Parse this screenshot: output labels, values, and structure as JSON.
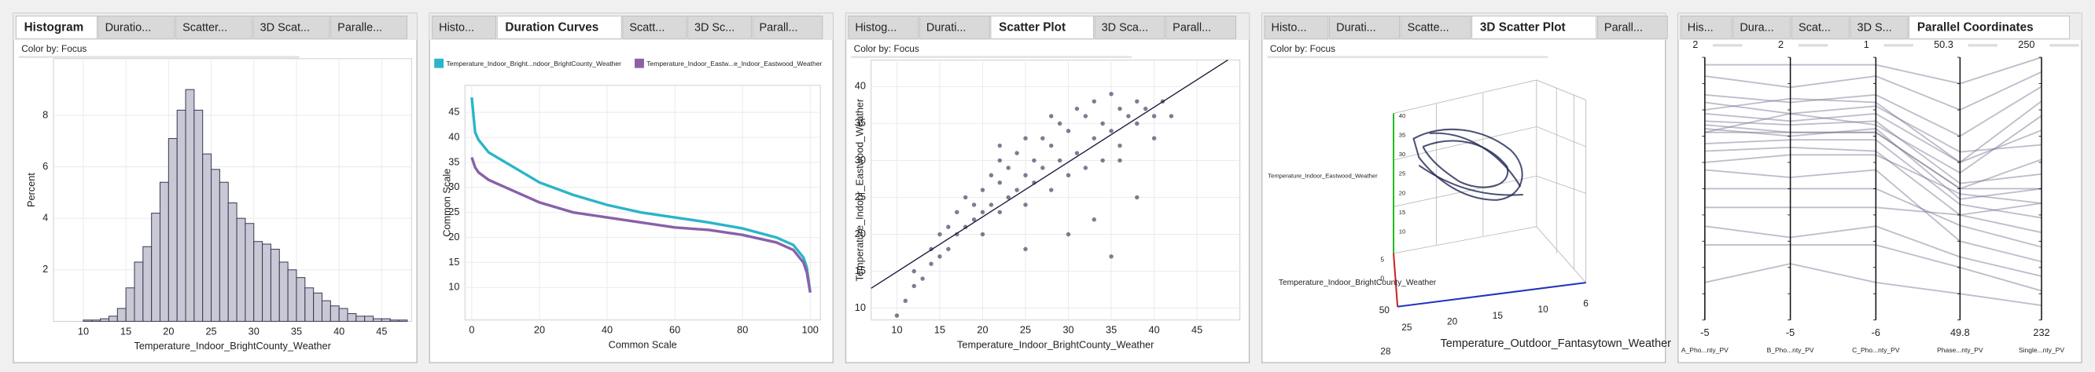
{
  "chart_data": [
    {
      "type": "histogram",
      "tabs": [
        "Histogram",
        "Duratio...",
        "Scatter...",
        "3D Scat...",
        "Paralle..."
      ],
      "active_tab": 0,
      "color_by": "Color by: Focus",
      "xlabel": "Temperature_Indoor_BrightCounty_Weather",
      "ylabel": "Percent",
      "bins": [
        10,
        11,
        12,
        13,
        14,
        15,
        16,
        17,
        18,
        19,
        20,
        21,
        22,
        23,
        24,
        25,
        26,
        27,
        28,
        29,
        30,
        31,
        32,
        33,
        34,
        35,
        36,
        37,
        38,
        39,
        40,
        41,
        42,
        43,
        44,
        45,
        46,
        47,
        48
      ],
      "values": [
        0.05,
        0.05,
        0.1,
        0.2,
        0.5,
        1.3,
        2.3,
        2.9,
        4.2,
        5.4,
        7.1,
        8.2,
        9.0,
        8.2,
        6.5,
        5.9,
        5.4,
        4.6,
        4.0,
        3.8,
        3.1,
        3.0,
        2.8,
        2.3,
        2.0,
        1.7,
        1.3,
        1.1,
        0.8,
        0.6,
        0.5,
        0.3,
        0.2,
        0.2,
        0.1,
        0.1,
        0.05,
        0.05
      ],
      "color": "#c9c9d6",
      "xlim": [
        6.5,
        48.5
      ],
      "ylim": [
        0,
        10.2
      ],
      "xticks": [
        10,
        15,
        20,
        25,
        30,
        35,
        40,
        45
      ],
      "yticks": [
        2,
        4,
        6,
        8
      ],
      "grid": true
    },
    {
      "type": "line",
      "tabs": [
        "Histo...",
        "Duration Curves",
        "Scatt...",
        "3D Sc...",
        "Parall..."
      ],
      "active_tab": 1,
      "xlabel": "Common Scale",
      "ylabel": "Common Scale",
      "x": [
        0,
        1,
        2,
        5,
        10,
        20,
        30,
        40,
        50,
        60,
        70,
        80,
        90,
        95,
        98,
        99,
        100
      ],
      "series": [
        {
          "name": "Temperature_Indoor_Bright...ndoor_BrightCounty_Weather",
          "color": "#2bb5c8",
          "values": [
            48,
            41,
            39.5,
            37,
            35,
            31,
            28.5,
            26.5,
            25,
            24,
            23,
            21.8,
            20,
            18.5,
            16,
            14,
            9
          ]
        },
        {
          "name": "Temperature_Indoor_Eastw...e_Indoor_Eastwood_Weather",
          "color": "#8a60a8",
          "values": [
            36,
            34,
            33,
            31.5,
            30,
            27,
            25,
            24,
            23,
            22,
            21.5,
            20.5,
            19,
            17.5,
            15,
            13,
            9
          ]
        }
      ],
      "xlim": [
        -2,
        103
      ],
      "ylim": [
        3.5,
        50.4
      ],
      "xticks": [
        0,
        20,
        40,
        60,
        80,
        100
      ],
      "yticks": [
        10,
        15,
        20,
        25,
        30,
        35,
        40,
        45
      ],
      "grid": true
    },
    {
      "type": "scatter",
      "tabs": [
        "Histog...",
        "Durati...",
        "Scatter Plot",
        "3D Sca...",
        "Parall..."
      ],
      "active_tab": 2,
      "color_by": "Color by: Focus",
      "xlabel": "Temperature_Indoor_BrightCounty_Weather",
      "ylabel": "Temperature_Indoor_Eastwood_Weather",
      "x": [
        10,
        11,
        12,
        12,
        13,
        14,
        14,
        15,
        15,
        16,
        16,
        17,
        17,
        18,
        18,
        19,
        19,
        20,
        20,
        20,
        21,
        21,
        22,
        22,
        22,
        23,
        23,
        24,
        24,
        25,
        25,
        25,
        26,
        26,
        27,
        27,
        28,
        28,
        29,
        29,
        30,
        30,
        31,
        31,
        32,
        32,
        33,
        33,
        34,
        34,
        35,
        35,
        36,
        36,
        37,
        38,
        38,
        39,
        40,
        41,
        25,
        30,
        35,
        38,
        36,
        33,
        22,
        28,
        42,
        40
      ],
      "values": [
        9,
        11,
        13,
        15,
        14,
        16,
        18,
        17,
        20,
        18,
        21,
        20,
        23,
        21,
        25,
        22,
        24,
        23,
        26,
        20,
        24,
        28,
        23,
        27,
        30,
        25,
        29,
        26,
        31,
        24,
        28,
        33,
        27,
        30,
        29,
        33,
        26,
        32,
        30,
        35,
        28,
        34,
        31,
        37,
        29,
        36,
        33,
        38,
        30,
        35,
        34,
        39,
        32,
        37,
        36,
        35,
        38,
        37,
        36,
        38,
        18,
        20,
        17,
        25,
        30,
        22,
        32,
        36,
        36,
        33
      ],
      "color": "#50506e",
      "fit_line": {
        "x": [
          7,
          48.6
        ],
        "y": [
          12.7,
          43.6
        ]
      },
      "xlim": [
        7,
        50
      ],
      "ylim": [
        8.4,
        43.6
      ],
      "xticks": [
        10,
        15,
        20,
        25,
        30,
        35,
        40,
        45
      ],
      "yticks": [
        10,
        15,
        20,
        25,
        30,
        35,
        40
      ],
      "grid": true
    },
    {
      "type": "scatter3d",
      "tabs": [
        "Histo...",
        "Durati...",
        "Scatte...",
        "3D Scatter Plot",
        "Parall..."
      ],
      "active_tab": 3,
      "color_by": "Color by: Focus",
      "zlabel": "Temperature_Indoor_Eastwood_Weather",
      "xlabel": "Temperature_Indoor_BrightCounty_Weather",
      "ylabel": "Temperature_Outdoor_Fantasytown_Weather",
      "zticks": [
        40,
        35,
        30,
        25,
        20,
        15,
        10
      ],
      "yticks": [
        25,
        20,
        15,
        10,
        6
      ],
      "xticks": [
        5,
        0
      ],
      "corner_labels": [
        50,
        28
      ]
    },
    {
      "type": "parallel",
      "tabs": [
        "His...",
        "Dura...",
        "Scat...",
        "3D S...",
        "Parallel Coordinates"
      ],
      "active_tab": 4,
      "axes": [
        "A_Pho...nty_PV",
        "B_Pho...nty_PV",
        "C_Pho...nty_PV",
        "Phase...nty_PV",
        "Single...nty_PV"
      ],
      "top": [
        2,
        2,
        1,
        50.3,
        250
      ],
      "bottom": [
        -5,
        -5,
        -6,
        49.8,
        232
      ],
      "color": "#6e6e8e",
      "records": [
        [
          0,
          0,
          -1,
          50.05,
          241
        ],
        [
          0.5,
          0.3,
          -0.5,
          50.1,
          245
        ],
        [
          -0.5,
          -0.4,
          -1.5,
          50.0,
          238
        ],
        [
          1,
          0.8,
          0,
          50.15,
          248
        ],
        [
          -1,
          -1.2,
          -2,
          49.95,
          236
        ],
        [
          0.2,
          0,
          -1,
          50.05,
          243
        ],
        [
          -2,
          -2,
          -3,
          50.0,
          240
        ],
        [
          1.5,
          1.2,
          0.5,
          50.2,
          249
        ],
        [
          -3,
          -3,
          -4,
          49.9,
          234
        ],
        [
          0,
          0.5,
          -0.8,
          50.08,
          246
        ],
        [
          -0.3,
          -0.2,
          -1.2,
          50.02,
          239
        ],
        [
          0.8,
          0.5,
          -0.3,
          50.12,
          244
        ],
        [
          -1.5,
          -1.5,
          -2.5,
          49.98,
          237
        ],
        [
          0.3,
          0.2,
          -0.7,
          50.06,
          242
        ],
        [
          -4,
          -3.5,
          -5,
          49.85,
          233
        ],
        [
          1.8,
          1.8,
          0.8,
          50.25,
          250
        ],
        [
          -0.8,
          -0.6,
          -1.6,
          50.04,
          240
        ],
        [
          0.6,
          0.9,
          -0.2,
          50.1,
          247
        ],
        [
          -2.5,
          -2.8,
          -3.5,
          49.92,
          235
        ],
        [
          0.1,
          -0.1,
          -0.9,
          50.03,
          241
        ]
      ]
    }
  ]
}
